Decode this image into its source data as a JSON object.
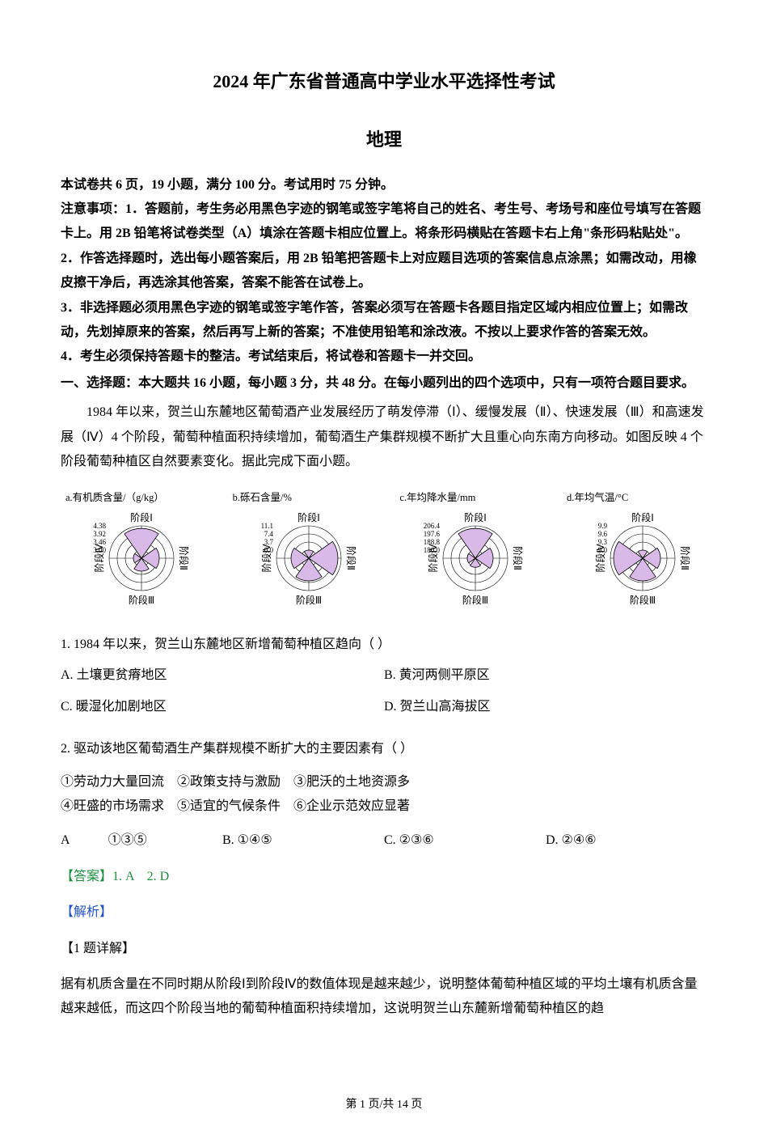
{
  "title_main": "2024 年广东省普通高中学业水平选择性考试",
  "title_sub": "地理",
  "instructions": {
    "line1": "本试卷共 6 页，19 小题，满分 100 分。考试用时 75 分钟。",
    "line2": "注意事项：1．答题前，考生务必用黑色字迹的钢笔或签字笔将自己的姓名、考生号、考场号和座位号填写在答题卡上。用 2B 铅笔将试卷类型（A）填涂在答题卡相应位置上。将条形码横贴在答题卡右上角\"条形码粘贴处\"。",
    "line3": "2．作答选择题时，选出每小题答案后，用 2B 铅笔把答题卡上对应题目选项的答案信息点涂黑；如需改动，用橡皮擦干净后，再选涂其他答案，答案不能答在试卷上。",
    "line4": "3．非选择题必须用黑色字迹的钢笔或签字笔作答，答案必须写在答题卡各题目指定区域内相应位置上；如需改动，先划掉原来的答案，然后再写上新的答案；不准使用铅笔和涂改液。不按以上要求作答的答案无效。",
    "line5": "4．考生必须保持答题卡的整洁。考试结束后，将试卷和答题卡一并交回。"
  },
  "section_heading": "一、选择题：本大题共 16 小题，每小题 3 分，共 48 分。在每小题列出的四个选项中，只有一项符合题目要求。",
  "passage": "1984 年以来，贺兰山东麓地区葡萄酒产业发展经历了萌发停滞（Ⅰ）、缓慢发展（Ⅱ）、快速发展（Ⅲ）和高速发展（Ⅳ）4 个阶段，葡萄种植面积持续增加，葡萄酒生产集群规模不断扩大且重心向东南方向移动。如图反映 4 个阶段葡萄种植区自然要素变化。据此完成下面小题。",
  "charts": {
    "stage_labels": {
      "top": "阶段Ⅰ",
      "right": "阶段Ⅱ",
      "bottom": "阶段Ⅲ",
      "left": "阶段Ⅳ"
    },
    "fill_color": "#d9b9e8",
    "stroke_color": "#000000",
    "ring_color": "#000000",
    "background": "#ffffff",
    "a": {
      "title": "a.有机质含量/（g/kg）",
      "ticks": [
        "4.38",
        "3.92",
        "3.46",
        "3.00"
      ],
      "values_rel": {
        "I": 0.92,
        "II": 0.55,
        "III": 0.4,
        "IV": 0.25
      }
    },
    "b": {
      "title": "b.砾石含量/%",
      "ticks": [
        "11.1",
        "7.4",
        "3.7",
        "0.0"
      ],
      "values_rel": {
        "I": 0.25,
        "II": 0.9,
        "III": 0.7,
        "IV": 0.55
      }
    },
    "c": {
      "title": "c.年均降水量/mm",
      "ticks": [
        "206.4",
        "197.6",
        "188.8",
        "180.0"
      ],
      "values_rel": {
        "I": 0.92,
        "II": 0.55,
        "III": 0.28,
        "IV": 0.25
      }
    },
    "d": {
      "title": "d.年均气温/°C",
      "ticks": [
        "9.9",
        "9.6",
        "9.3",
        "9.0"
      ],
      "values_rel": {
        "I": 0.25,
        "II": 0.55,
        "III": 0.7,
        "IV": 0.9
      }
    }
  },
  "q1": {
    "stem": "1. 1984 年以来，贺兰山东麓地区新增葡萄种植区趋向（    ）",
    "A": "A. 土壤更贫瘠地区",
    "B": "B. 黄河两侧平原区",
    "C": "C. 暖湿化加剧地区",
    "D": "D. 贺兰山高海拔区"
  },
  "q2": {
    "stem": "2. 驱动该地区葡萄酒生产集群规模不断扩大的主要因素有（    ）",
    "factors1": "①劳动力大量回流　②政策支持与激励　③肥沃的土地资源多",
    "factors2": "④旺盛的市场需求　⑤适宜的气候条件　⑥企业示范效应显著",
    "A": "A　　　①③⑤",
    "B": "B. ①④⑤",
    "C": "C. ②③⑥",
    "D": "D. ②④⑥"
  },
  "answer": "【答案】1. A　2. D",
  "analysis_label": "【解析】",
  "sub_detail": "【1 题详解】",
  "explain": "据有机质含量在不同时期从阶段Ⅰ到阶段Ⅳ的数值体现是越来越少，说明整体葡萄种植区域的平均土壤有机质含量越来越低，而这四个阶段当地的葡萄种植面积持续增加，这说明贺兰山东麓新增葡萄种植区的趋",
  "footer": "第 1 页/共 14 页"
}
